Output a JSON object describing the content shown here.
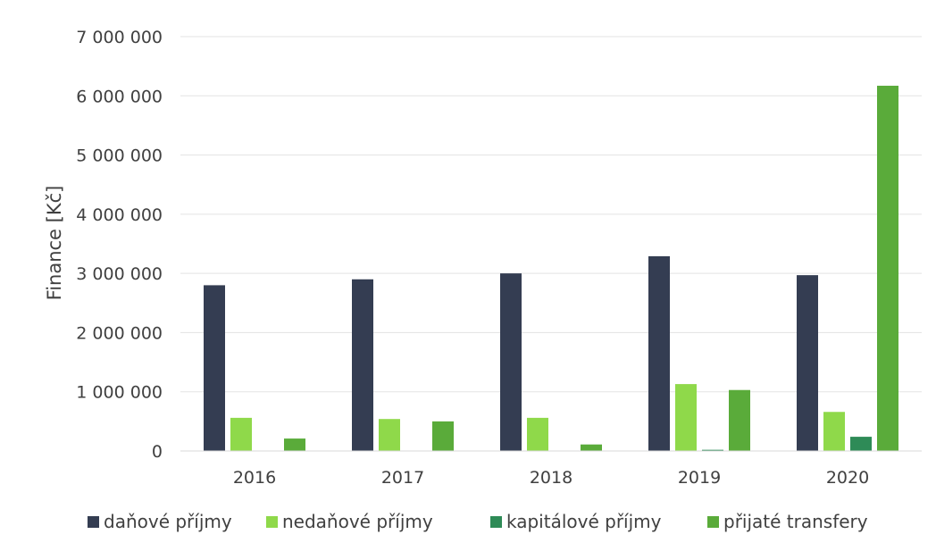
{
  "chart_data": {
    "type": "bar",
    "title": "",
    "xlabel": "",
    "ylabel": "Finance [Kč]",
    "categories": [
      "2016",
      "2017",
      "2018",
      "2019",
      "2020"
    ],
    "ylim": [
      0,
      7000000
    ],
    "yticks": [
      {
        "value": 0,
        "label": "0"
      },
      {
        "value": 1000000,
        "label": "1 000 000"
      },
      {
        "value": 2000000,
        "label": "2 000 000"
      },
      {
        "value": 3000000,
        "label": "3 000 000"
      },
      {
        "value": 4000000,
        "label": "4 000 000"
      },
      {
        "value": 5000000,
        "label": "5 000 000"
      },
      {
        "value": 6000000,
        "label": "6 000 000"
      },
      {
        "value": 7000000,
        "label": "7 000 000"
      }
    ],
    "grid": true,
    "legend_position": "bottom",
    "series": [
      {
        "name": "daňové příjmy",
        "color": "#343d52",
        "values": [
          2800000,
          2900000,
          3000000,
          3290000,
          2970000
        ]
      },
      {
        "name": "nedaňové příjmy",
        "color": "#8fd94a",
        "values": [
          560000,
          540000,
          560000,
          1130000,
          660000
        ]
      },
      {
        "name": "kapitálové příjmy",
        "color": "#2e8b57",
        "values": [
          0,
          0,
          0,
          20000,
          240000
        ]
      },
      {
        "name": "přijaté transfery",
        "color": "#5aab3a",
        "values": [
          210000,
          500000,
          110000,
          1030000,
          6170000
        ]
      }
    ]
  }
}
